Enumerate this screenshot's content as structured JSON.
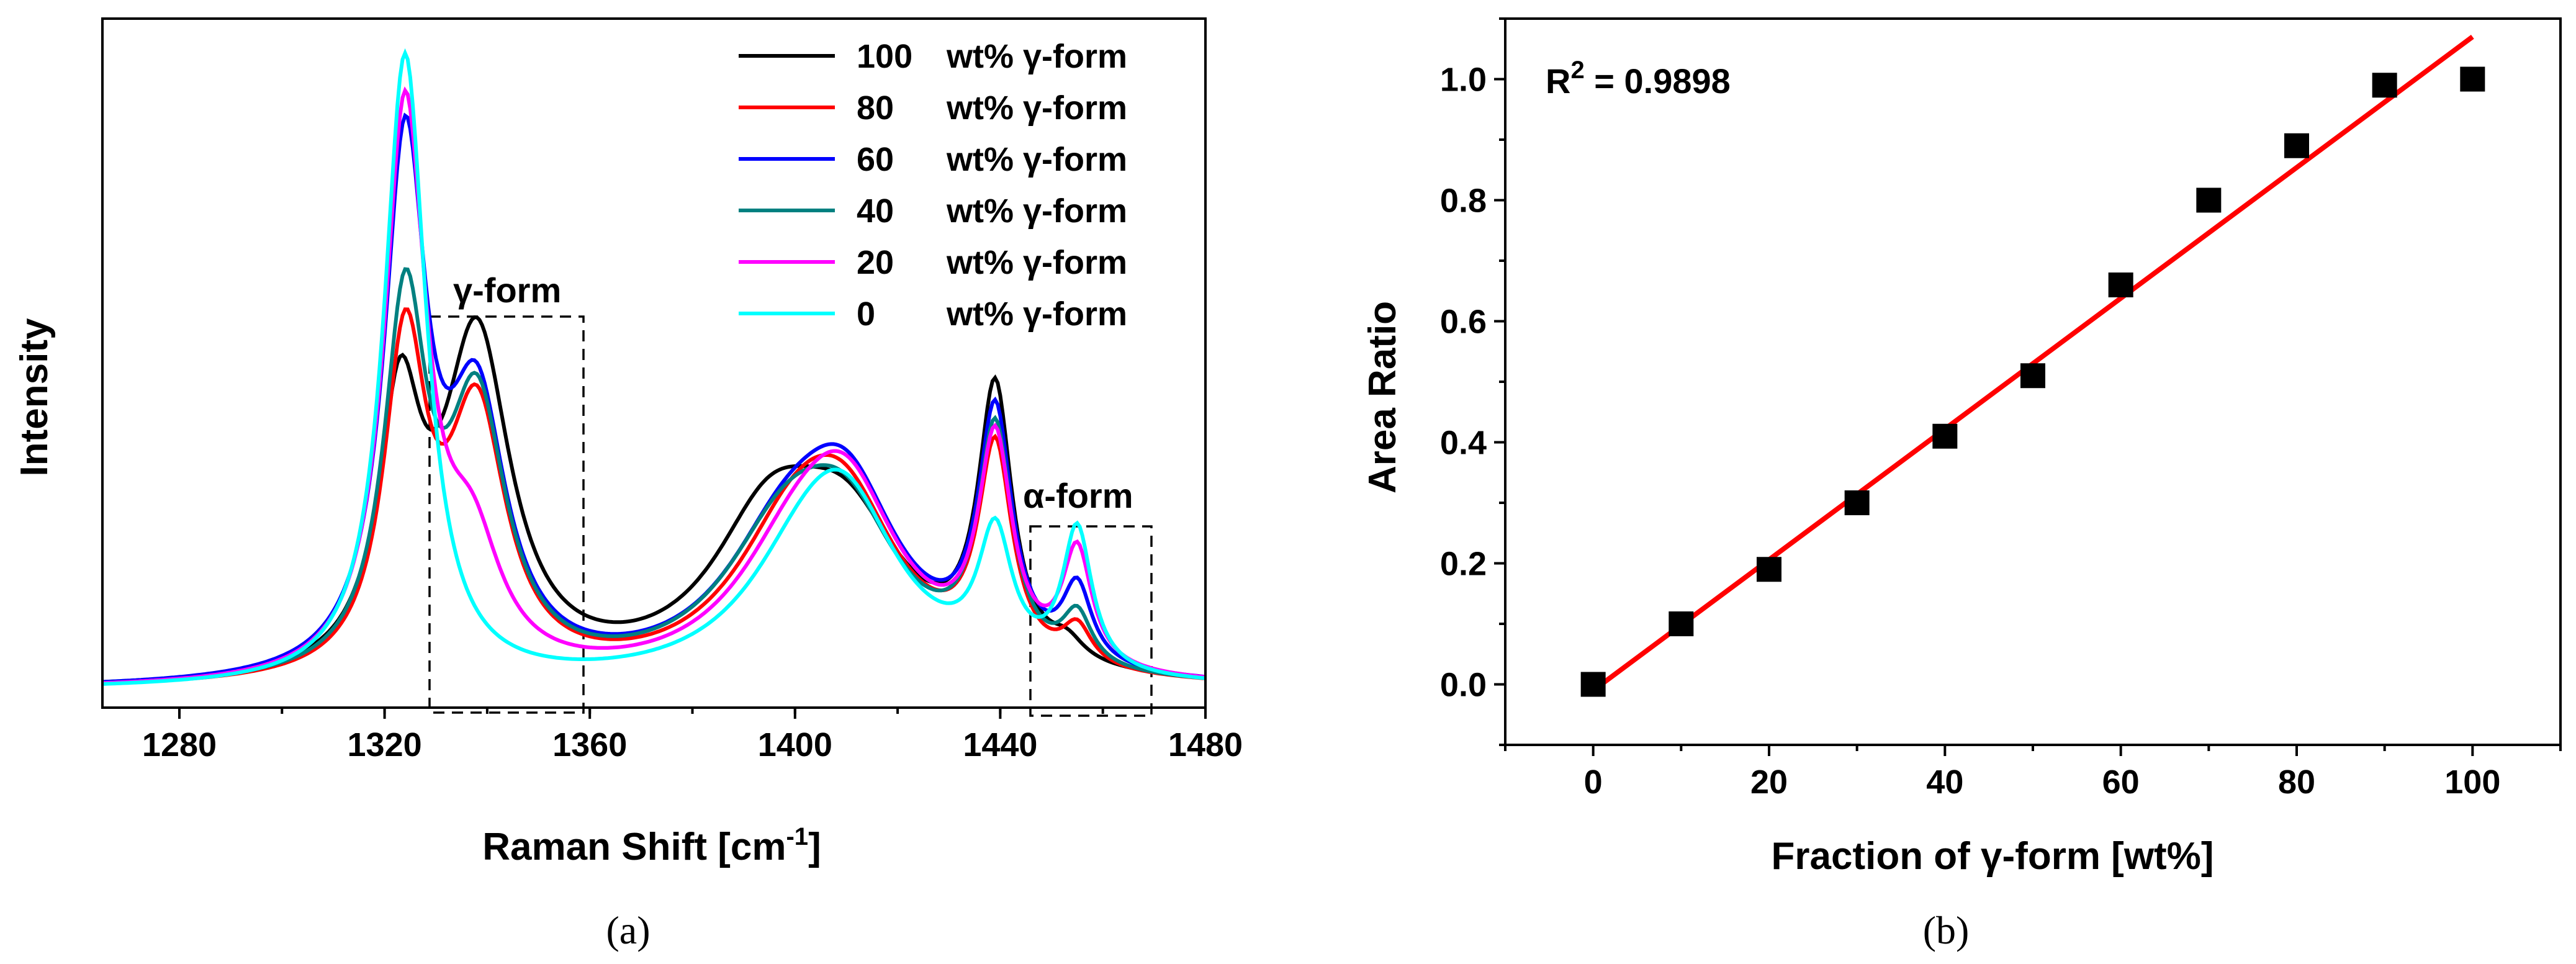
{
  "chart_data": [
    {
      "type": "line",
      "panel": "(a)",
      "xlabel": "Raman Shift [cm-1]",
      "xlabel_main": "Raman Shift [cm",
      "xlabel_sup": "-1",
      "xlabel_end": "]",
      "ylabel": "Intensity",
      "xlim": [
        1265,
        1480
      ],
      "ylim": [
        0,
        1.02
      ],
      "x_ticks": [
        "1280",
        "1320",
        "1360",
        "1400",
        "1440",
        "1480"
      ],
      "legend_position": "top-right",
      "annotations": {
        "gamma_box": "γ-form",
        "alpha_box": "α-form"
      },
      "series": [
        {
          "name": "100 wt% γ-form",
          "legend_num": "100",
          "legend_unit": "wt% γ-form",
          "color": "#000000",
          "peaks": [
            [
              1323,
              0.39,
              5
            ],
            [
              1338,
              0.52,
              8
            ],
            [
              1395,
              0.22,
              14
            ],
            [
              1410,
              0.21,
              14
            ],
            [
              1439,
              0.42,
              4
            ],
            [
              1453,
              0.03,
              4
            ]
          ]
        },
        {
          "name": "80 wt% γ-form",
          "legend_num": "80",
          "legend_unit": "wt% γ-form",
          "color": "#ff0000",
          "peaks": [
            [
              1324,
              0.5,
              5
            ],
            [
              1338,
              0.4,
              7
            ],
            [
              1400,
              0.2,
              15
            ],
            [
              1410,
              0.2,
              13
            ],
            [
              1439,
              0.33,
              4
            ],
            [
              1455,
              0.06,
              3.5
            ]
          ]
        },
        {
          "name": "60 wt% γ-form",
          "legend_num": "60",
          "legend_unit": "wt% γ-form",
          "color": "#0000ff",
          "peaks": [
            [
              1324,
              0.8,
              5
            ],
            [
              1338,
              0.4,
              7
            ],
            [
              1398,
              0.18,
              15
            ],
            [
              1410,
              0.25,
              13
            ],
            [
              1439,
              0.38,
              4
            ],
            [
              1455,
              0.12,
              3.5
            ]
          ]
        },
        {
          "name": "40 wt% γ-form",
          "legend_num": "40",
          "legend_unit": "wt% γ-form",
          "color": "#008080",
          "peaks": [
            [
              1324,
              0.56,
              5
            ],
            [
              1338,
              0.41,
              7
            ],
            [
              1398,
              0.2,
              15
            ],
            [
              1410,
              0.2,
              13
            ],
            [
              1439,
              0.36,
              4
            ],
            [
              1455,
              0.08,
              3.5
            ]
          ]
        },
        {
          "name": "20 wt% γ-form",
          "legend_num": "20",
          "legend_unit": "wt% γ-form",
          "color": "#ff00ff",
          "peaks": [
            [
              1324,
              0.88,
              5
            ],
            [
              1337,
              0.18,
              7
            ],
            [
              1400,
              0.15,
              15
            ],
            [
              1410,
              0.25,
              13
            ],
            [
              1439,
              0.34,
              4
            ],
            [
              1455,
              0.18,
              3.5
            ]
          ]
        },
        {
          "name": "0 wt% γ-form",
          "legend_num": "0",
          "legend_unit": "wt% γ-form",
          "color": "#00ffff",
          "peaks": [
            [
              1324,
              0.98,
              5
            ],
            [
              1402,
              0.14,
              15
            ],
            [
              1410,
              0.22,
              13
            ],
            [
              1439,
              0.2,
              4
            ],
            [
              1455,
              0.22,
              3.5
            ]
          ]
        }
      ]
    },
    {
      "type": "scatter",
      "panel": "(b)",
      "xlabel": "Fraction of γ-form [wt%]",
      "ylabel": "Area Ratio",
      "xlim": [
        -10,
        110
      ],
      "ylim": [
        -0.1,
        1.1
      ],
      "x_ticks": [
        "0",
        "20",
        "40",
        "60",
        "80",
        "100"
      ],
      "y_ticks": [
        "0.0",
        "0.2",
        "0.4",
        "0.6",
        "0.8",
        "1.0"
      ],
      "r2_prefix": "R",
      "r2_sup": "2",
      "r2_value": " = 0.9898",
      "points": {
        "x": [
          0,
          10,
          20,
          30,
          40,
          50,
          60,
          70,
          80,
          90,
          100
        ],
        "y": [
          0.0,
          0.1,
          0.19,
          0.3,
          0.41,
          0.51,
          0.66,
          0.8,
          0.89,
          0.99,
          1.0
        ]
      },
      "fit_line": {
        "x": [
          0,
          100
        ],
        "y": [
          -0.01,
          1.07
        ],
        "color": "#ff0000"
      },
      "marker_color": "#000000"
    }
  ],
  "captions": {
    "a": "(a)",
    "b": "(b)"
  }
}
